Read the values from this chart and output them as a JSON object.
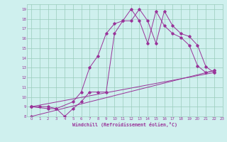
{
  "xlabel": "Windchill (Refroidissement éolien,°C)",
  "bg_color": "#cff0ee",
  "grid_color": "#99ccbb",
  "line_color": "#993399",
  "xlim": [
    -0.5,
    23
  ],
  "ylim": [
    8,
    19.5
  ],
  "xticks": [
    0,
    1,
    2,
    3,
    4,
    5,
    6,
    7,
    8,
    9,
    10,
    11,
    12,
    13,
    14,
    15,
    16,
    17,
    18,
    19,
    20,
    21,
    22,
    23
  ],
  "yticks": [
    8,
    9,
    10,
    11,
    12,
    13,
    14,
    15,
    16,
    17,
    18,
    19
  ],
  "line1_x": [
    0,
    1,
    2,
    3,
    4,
    5,
    6,
    7,
    8,
    9,
    10,
    11,
    12,
    13,
    14,
    15,
    16,
    17,
    18,
    19,
    20,
    21,
    22
  ],
  "line1_y": [
    9,
    9,
    9,
    8.8,
    8.0,
    8.8,
    9.5,
    10.5,
    10.5,
    10.5,
    16.5,
    17.8,
    17.8,
    19.0,
    17.8,
    15.5,
    18.8,
    17.3,
    16.5,
    16.2,
    15.3,
    13.1,
    12.5
  ],
  "line2_x": [
    0,
    2,
    3,
    5,
    6,
    7,
    8,
    9,
    10,
    11,
    12,
    13,
    14,
    15,
    16,
    17,
    18,
    19,
    20,
    21,
    22
  ],
  "line2_y": [
    9,
    8.8,
    8.8,
    9.5,
    10.5,
    13.0,
    14.2,
    16.5,
    17.5,
    17.8,
    19.0,
    17.8,
    15.5,
    18.8,
    17.3,
    16.5,
    16.1,
    15.3,
    13.2,
    12.5,
    12.7
  ],
  "line3_x": [
    0,
    22
  ],
  "line3_y": [
    9.0,
    12.5
  ],
  "line4_x": [
    0,
    22
  ],
  "line4_y": [
    8.0,
    12.7
  ]
}
